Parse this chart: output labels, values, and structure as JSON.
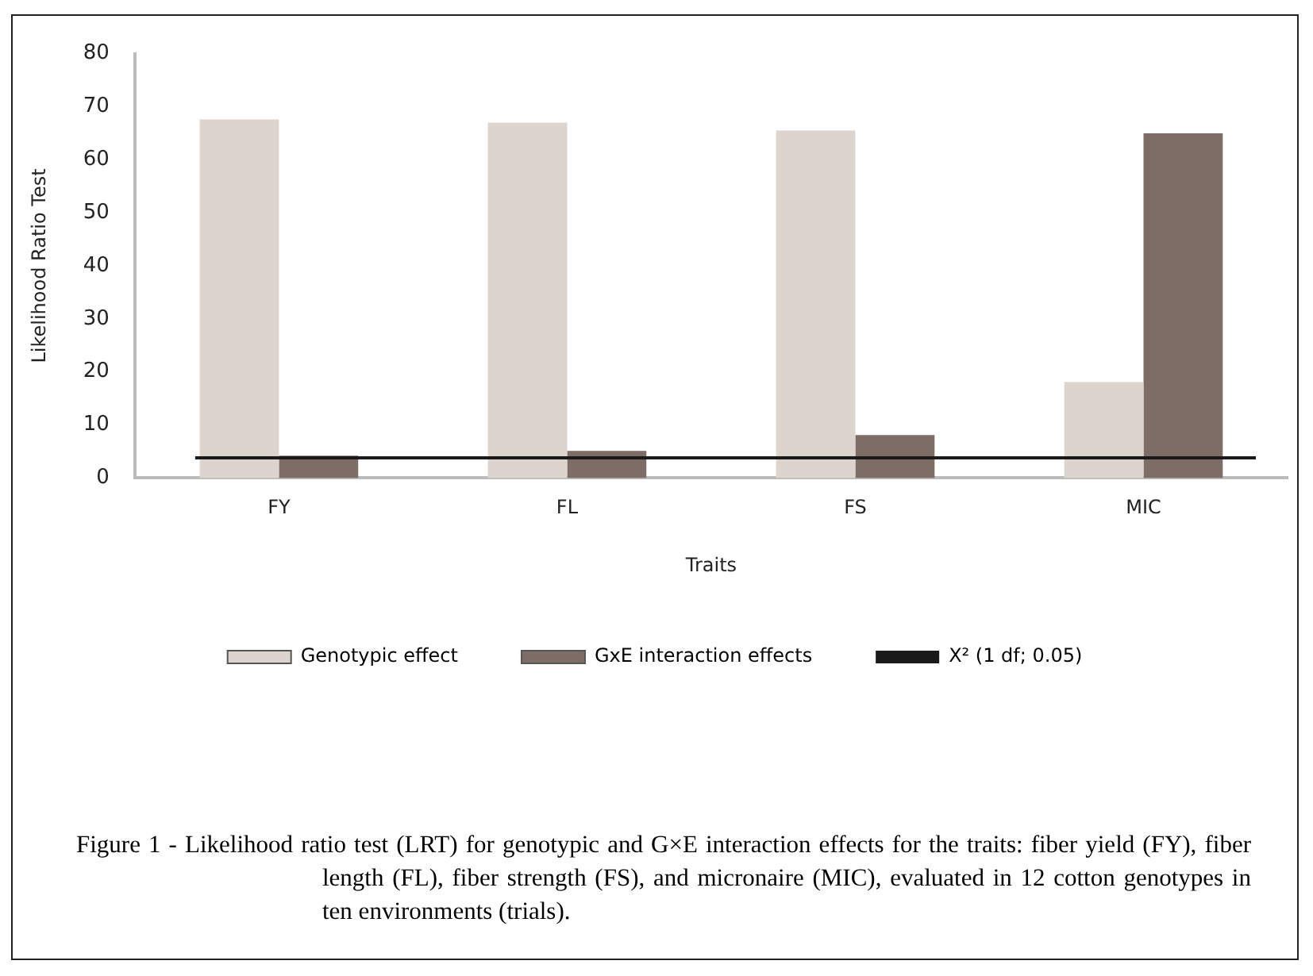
{
  "chart_data": {
    "type": "bar",
    "xlabel": "Traits",
    "ylabel": "Likelihood Ratio Test",
    "categories": [
      "FY",
      "FL",
      "FS",
      "MIC"
    ],
    "series": [
      {
        "name": "Genotypic effect",
        "color": "#ddd4ce",
        "values": [
          67.6,
          67.0,
          65.5,
          18.1
        ]
      },
      {
        "name": "GxE interaction effects",
        "color": "#7d6d66",
        "values": [
          4.2,
          5.1,
          8.1,
          65.0
        ]
      }
    ],
    "ylim": [
      0,
      80
    ],
    "yticks": [
      0,
      10,
      20,
      30,
      40,
      50,
      60,
      70,
      80
    ],
    "grid": false,
    "legend": "bottom",
    "ref_lines": [
      {
        "axis": "y",
        "value": 3.8,
        "label": "X² (1 df; 0.05)",
        "color": "#1a1a1a",
        "line_style": "solid"
      }
    ],
    "annotations": [
      "Figure 1 - Likelihood ratio test (LRT) for genotypic and G×E interaction effects for the traits: fiber yield (FY), fiber length (FL), fiber strength (FS), and micronaire (MIC), evaluated in 12 cotton genotypes in ten environments (trials)."
    ]
  }
}
